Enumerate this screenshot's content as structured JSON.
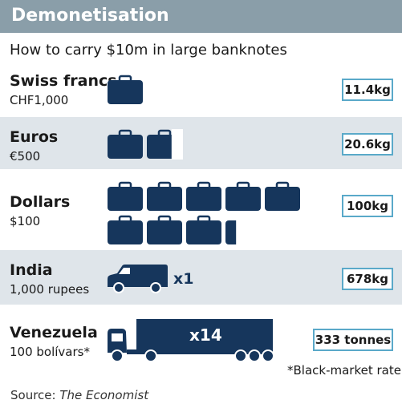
{
  "header": {
    "title": "Demonetisation"
  },
  "subtitle": "How to carry $10m in large banknotes",
  "source": {
    "label": "Source:",
    "publisher": "The Economist"
  },
  "footnote": "*Black-market rate",
  "colors": {
    "header": "#8a9ea9",
    "shade": "#dfe5ea",
    "icon": "#16365c",
    "box_border": "#5aa9c9"
  },
  "chart_data": {
    "type": "table",
    "title": "Demonetisation",
    "subtitle": "How to carry $10m in large banknotes",
    "rows": [
      {
        "name": "Swiss francs",
        "note": "CHF1,000",
        "weight": "11.4kg",
        "icon": "briefcase-icon",
        "count": 1
      },
      {
        "name": "Euros",
        "note": "€500",
        "weight": "20.6kg",
        "icon": "briefcase-icon",
        "count": 1.7
      },
      {
        "name": "Dollars",
        "note": "$100",
        "weight": "100kg",
        "icon": "briefcase-icon",
        "count": 8.3
      },
      {
        "name": "India",
        "note": "1,000 rupees",
        "weight": "678kg",
        "icon": "van-icon",
        "count": 1,
        "multiplier": "x1"
      },
      {
        "name": "Venezuela",
        "note": "100 bolívars*",
        "weight": "333 tonnes",
        "icon": "truck-icon",
        "count": 14,
        "multiplier": "x14"
      }
    ]
  }
}
